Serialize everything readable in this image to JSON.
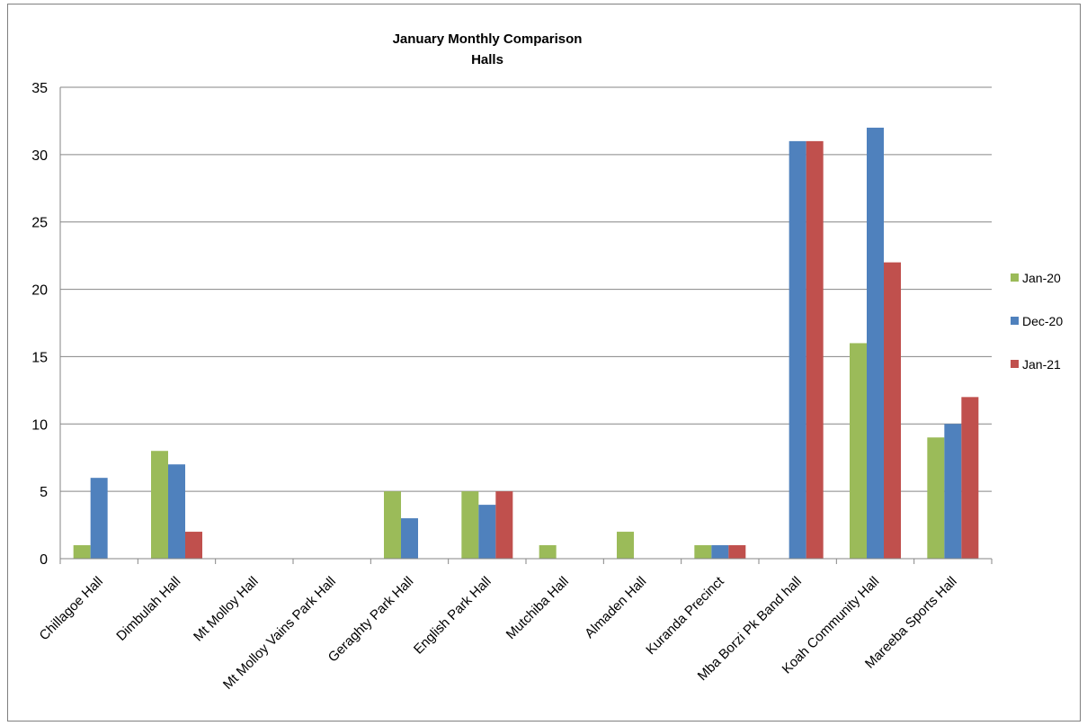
{
  "chart_data": {
    "type": "bar",
    "title": "January  Monthly Comparison",
    "subtitle": "Halls",
    "xlabel": "",
    "ylabel": "",
    "ylim": [
      0,
      35
    ],
    "yticks": [
      0,
      5,
      10,
      15,
      20,
      25,
      30,
      35
    ],
    "grid": true,
    "legend_position": "right",
    "categories": [
      "Chillagoe Hall",
      "Dimbulah Hall",
      "Mt Molloy Hall",
      "Mt Molloy Vains Park Hall",
      "Geraghty Park Hall",
      "English Park Hall",
      "Mutchiba Hall",
      "Almaden Hall",
      "Kuranda Precinct",
      "Mba Borzi Pk Band hall",
      "Koah Community Hall",
      "Mareeba Sports Hall"
    ],
    "series": [
      {
        "name": "Jan-20",
        "color": "#9bbb59",
        "values": [
          1,
          8,
          0,
          0,
          5,
          5,
          1,
          2,
          1,
          0,
          16,
          9
        ]
      },
      {
        "name": "Dec-20",
        "color": "#4f81bd",
        "values": [
          6,
          7,
          0,
          0,
          3,
          4,
          0,
          0,
          1,
          31,
          32,
          10
        ]
      },
      {
        "name": "Jan-21",
        "color": "#c0504d",
        "values": [
          0,
          2,
          0,
          0,
          0,
          5,
          0,
          0,
          1,
          31,
          22,
          12
        ]
      }
    ]
  }
}
